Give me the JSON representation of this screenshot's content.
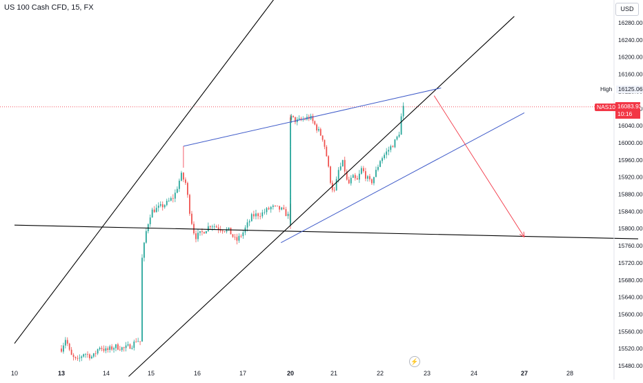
{
  "header": {
    "symbol_title": "US 100 Cash CFD, 15, FX",
    "currency": "USD"
  },
  "price_labels": {
    "high_label": "High",
    "high_value": "16125.06",
    "symbol_badge": "NAS100",
    "last_price": "16083.93",
    "countdown": "10:16"
  },
  "icons": {
    "replay": "lightning-icon"
  },
  "colors": {
    "up_candle": "#26a69a",
    "down_candle": "#ef5350",
    "channel_lines": "#000000",
    "wedge_lines": "#3f5bc9",
    "arrow": "#f23645",
    "last_price_line": "#f23645"
  },
  "chart_data": {
    "type": "candlestick",
    "title": "US 100 Cash CFD, 15, FX",
    "y_ticks": [
      16280,
      16240,
      16200,
      16160,
      16120,
      16080,
      16040,
      16000,
      15960,
      15920,
      15880,
      15840,
      15800,
      15760,
      15720,
      15680,
      15640,
      15600,
      15560,
      15520,
      15480
    ],
    "y_tick_labels": [
      "16280.00",
      "16240.00",
      "16200.00",
      "16160.00",
      "16120.00",
      "16080.00",
      "16040.00",
      "16000.00",
      "15960.00",
      "15920.00",
      "15880.00",
      "15840.00",
      "15800.00",
      "15760.00",
      "15720.00",
      "15680.00",
      "15640.00",
      "15600.00",
      "15560.00",
      "15520.00",
      "15480.00"
    ],
    "x_ticks": [
      {
        "day": 10,
        "label": "10",
        "bold": false
      },
      {
        "day": 13,
        "label": "13",
        "bold": true
      },
      {
        "day": 14,
        "label": "14",
        "bold": false
      },
      {
        "day": 15,
        "label": "15",
        "bold": false
      },
      {
        "day": 16,
        "label": "16",
        "bold": false
      },
      {
        "day": 17,
        "label": "17",
        "bold": false
      },
      {
        "day": 20,
        "label": "20",
        "bold": true
      },
      {
        "day": 21,
        "label": "21",
        "bold": false
      },
      {
        "day": 22,
        "label": "22",
        "bold": false
      },
      {
        "day": 23,
        "label": "23",
        "bold": false
      },
      {
        "day": 24,
        "label": "24",
        "bold": false
      },
      {
        "day": 27,
        "label": "27",
        "bold": true
      },
      {
        "day": 28,
        "label": "28",
        "bold": false
      }
    ],
    "ylim": [
      15470,
      16310
    ],
    "high": 16125.06,
    "last": 16083.93,
    "price_path": [
      [
        13.0,
        15520
      ],
      [
        13.1,
        15545
      ],
      [
        13.2,
        15505
      ],
      [
        13.35,
        15490
      ],
      [
        13.5,
        15510
      ],
      [
        13.7,
        15500
      ],
      [
        13.85,
        15525
      ],
      [
        14.0,
        15515
      ],
      [
        14.2,
        15525
      ],
      [
        14.4,
        15520
      ],
      [
        14.6,
        15530
      ],
      [
        14.7,
        15545
      ],
      [
        14.75,
        15515
      ],
      [
        14.8,
        15730
      ],
      [
        14.9,
        15800
      ],
      [
        15.0,
        15840
      ],
      [
        15.2,
        15850
      ],
      [
        15.35,
        15860
      ],
      [
        15.5,
        15875
      ],
      [
        15.65,
        15925
      ],
      [
        15.75,
        15905
      ],
      [
        15.85,
        15830
      ],
      [
        15.95,
        15780
      ],
      [
        16.1,
        15790
      ],
      [
        16.3,
        15810
      ],
      [
        16.5,
        15800
      ],
      [
        16.7,
        15795
      ],
      [
        16.85,
        15770
      ],
      [
        17.0,
        15790
      ],
      [
        17.2,
        15830
      ],
      [
        17.4,
        15835
      ],
      [
        17.6,
        15850
      ],
      [
        17.8,
        15845
      ],
      [
        18.0,
        15825
      ],
      [
        18.15,
        15860
      ],
      [
        18.35,
        15830
      ],
      [
        18.5,
        15805
      ],
      [
        18.7,
        15815
      ],
      [
        18.9,
        15820
      ],
      [
        19.05,
        15810
      ],
      [
        19.2,
        15835
      ],
      [
        19.35,
        15870
      ],
      [
        19.5,
        15900
      ],
      [
        19.6,
        15980
      ],
      [
        19.75,
        16000
      ],
      [
        19.85,
        16050
      ],
      [
        20.0,
        16060
      ],
      [
        20.15,
        16050
      ],
      [
        20.3,
        16055
      ],
      [
        20.45,
        16060
      ],
      [
        20.6,
        16035
      ],
      [
        20.75,
        16010
      ],
      [
        20.85,
        15960
      ],
      [
        20.9,
        15920
      ],
      [
        21.0,
        15880
      ],
      [
        21.1,
        15935
      ],
      [
        21.2,
        15955
      ],
      [
        21.3,
        15900
      ],
      [
        21.4,
        15920
      ],
      [
        21.5,
        15910
      ],
      [
        21.6,
        15940
      ],
      [
        21.7,
        15920
      ],
      [
        21.8,
        15905
      ],
      [
        21.9,
        15930
      ],
      [
        22.0,
        15960
      ],
      [
        22.15,
        15980
      ],
      [
        22.3,
        16000
      ],
      [
        22.4,
        16020
      ],
      [
        22.45,
        16060
      ],
      [
        22.5,
        16083.93
      ]
    ],
    "annotations": [
      {
        "type": "channel_line",
        "from": [
          10.0,
          15532
        ],
        "to": [
          20.7,
          16480
        ]
      },
      {
        "type": "channel_line",
        "from": [
          14.5,
          15455
        ],
        "to": [
          24.8,
          16295
        ]
      },
      {
        "type": "horizontal_support",
        "from": [
          10.0,
          15808
        ],
        "to": [
          29.5,
          15776
        ]
      },
      {
        "type": "wedge_upper",
        "from": [
          15.7,
          15992
        ],
        "to": [
          23.3,
          16128
        ]
      },
      {
        "type": "wedge_lower",
        "from": [
          17.8,
          15767
        ],
        "to": [
          26.3,
          16070
        ]
      },
      {
        "type": "projection_arrow",
        "from": [
          23.15,
          16110
        ],
        "to": [
          25.3,
          15780
        ]
      }
    ]
  }
}
